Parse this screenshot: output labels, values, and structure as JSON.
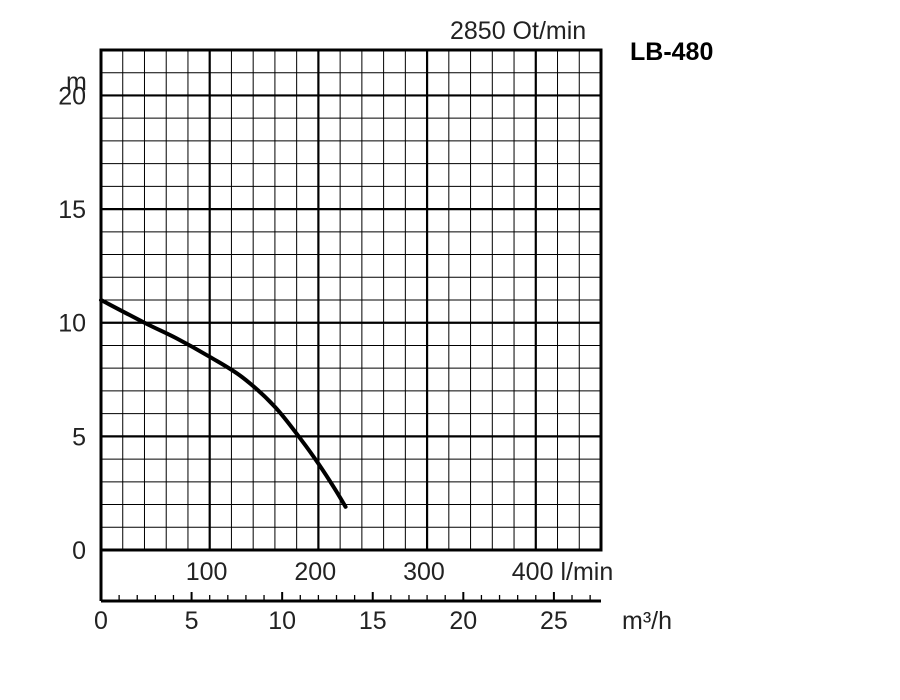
{
  "chart_data": {
    "type": "line",
    "speed_label": "2850 Ot/min",
    "model_label": "LB-480",
    "y_axis": {
      "unit": "m",
      "range": [
        0,
        22
      ],
      "ticks": [
        0,
        5,
        10,
        15,
        20
      ],
      "tick_labels": [
        "0",
        "5",
        "10",
        "15",
        "20"
      ]
    },
    "x_axis_lmin": {
      "unit": "l/min",
      "range": [
        0,
        460
      ],
      "ticks": [
        100,
        200,
        300,
        400
      ],
      "tick_labels": [
        "100",
        "200",
        "300",
        "400 l/min"
      ]
    },
    "x_axis_m3h": {
      "unit": "m³/h",
      "range": [
        0,
        27.6
      ],
      "ticks": [
        0,
        5,
        10,
        15,
        20,
        25
      ],
      "tick_labels": [
        "0",
        "5",
        "10",
        "15",
        "20",
        "25"
      ]
    },
    "grid": true,
    "series": [
      {
        "x_lmin": [
          0,
          40,
          70,
          100,
          130,
          160,
          185,
          200,
          215,
          225
        ],
        "y_m": [
          11,
          10,
          9.3,
          8.5,
          7.6,
          6.3,
          4.8,
          3.8,
          2.7,
          1.9
        ]
      }
    ]
  }
}
